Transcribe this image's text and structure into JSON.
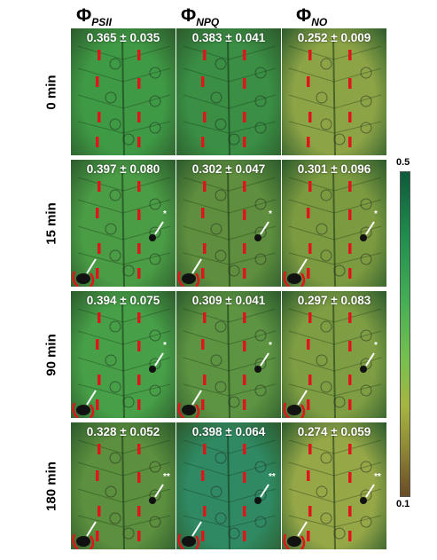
{
  "columns": [
    {
      "phi": "Φ",
      "sub": "PSII"
    },
    {
      "phi": "Φ",
      "sub": "NPQ"
    },
    {
      "phi": "Φ",
      "sub": "NO"
    }
  ],
  "rows": [
    {
      "label": "0 min",
      "values": [
        "0.365 ± 0.035",
        "0.383 ± 0.041",
        "0.252 ± 0.009"
      ]
    },
    {
      "label": "15 min",
      "values": [
        "0.397 ± 0.080",
        "0.302 ± 0.047",
        "0.301 ± 0.096"
      ]
    },
    {
      "label": "90 min",
      "values": [
        "0.394 ± 0.075",
        "0.309 ± 0.041",
        "0.297 ± 0.083"
      ]
    },
    {
      "label": "180 min",
      "values": [
        "0.328 ± 0.052",
        "0.398 ± 0.064",
        "0.274 ± 0.059"
      ]
    }
  ],
  "markers": [
    "",
    "*",
    "*",
    "**"
  ],
  "colorbar": {
    "max": "0.5",
    "min": "0.1",
    "colors": [
      "#0d5a3a",
      "#44b055",
      "#a6b640",
      "#6a4b26"
    ]
  },
  "panel_colors": [
    [
      "#3f9a45",
      "#3a8f44",
      "#8da446"
    ],
    [
      "#4a9c45",
      "#5f8f3e",
      "#7c9a40"
    ],
    [
      "#47a048",
      "#5d9442",
      "#7f9e43"
    ],
    [
      "#5c8f3e",
      "#2f8a63",
      "#95a747"
    ]
  ]
}
